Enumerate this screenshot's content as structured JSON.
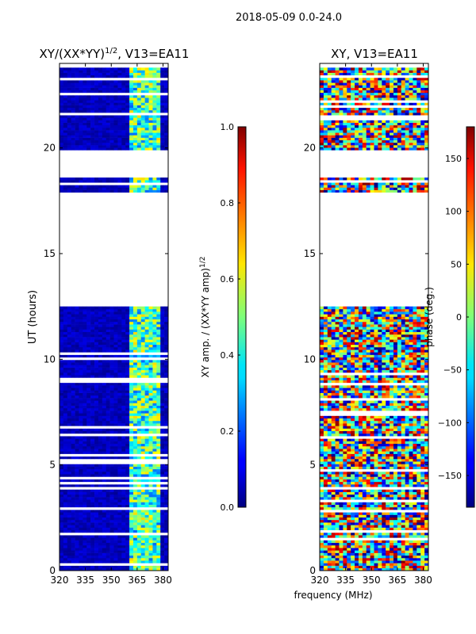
{
  "suptitle": "2018-05-09 0.0-24.0",
  "shared_xlabel": "frequency (MHz)",
  "chart_data": [
    {
      "type": "heatmap",
      "title": "XY/(XX*YY)^1/2, V13=EA11",
      "title_main": "XY/(XX*YY)",
      "title_exp": "1/2",
      "title_suffix": ", V13=EA11",
      "xlabel": "frequency (MHz)",
      "ylabel": "UT (hours)",
      "xlim": [
        320,
        383
      ],
      "ylim": [
        0,
        24
      ],
      "xticks": [
        320,
        335,
        350,
        365,
        380
      ],
      "yticks": [
        0,
        5,
        10,
        15,
        20
      ],
      "colormap": "jet",
      "colorbar": {
        "label": "XY amp. / (XX*YY amp)^1/2",
        "label_main": "XY amp. / (XX*YY amp)",
        "label_exp": "1/2",
        "range": [
          0.0,
          1.0
        ],
        "ticks": [
          "0.0",
          "0.2",
          "0.4",
          "0.6",
          "0.8",
          "1.0"
        ],
        "tick_values": [
          0.0,
          0.2,
          0.4,
          0.6,
          0.8,
          1.0
        ]
      },
      "data_windows_hours": [
        [
          0.0,
          12.5
        ],
        [
          17.9,
          18.6
        ],
        [
          19.9,
          23.8
        ]
      ],
      "high_amplitude_band_mhz": [
        359,
        378
      ]
    },
    {
      "type": "heatmap",
      "title": "XY, V13=EA11",
      "xlabel": "frequency (MHz)",
      "ylabel": "",
      "xlim": [
        320,
        383
      ],
      "ylim": [
        0,
        24
      ],
      "xticks": [
        320,
        335,
        350,
        365,
        380
      ],
      "yticks": [
        0,
        5,
        10,
        15,
        20
      ],
      "colormap": "jet",
      "colorbar": {
        "label": "phase (deg.)",
        "range": [
          -180,
          180
        ],
        "ticks": [
          "−150",
          "−100",
          "−50",
          "0",
          "50",
          "100",
          "150"
        ],
        "tick_values": [
          -150,
          -100,
          -50,
          0,
          50,
          100,
          150
        ]
      },
      "data_windows_hours": [
        [
          0.0,
          12.5
        ],
        [
          17.9,
          18.6
        ],
        [
          19.9,
          23.8
        ]
      ]
    }
  ]
}
